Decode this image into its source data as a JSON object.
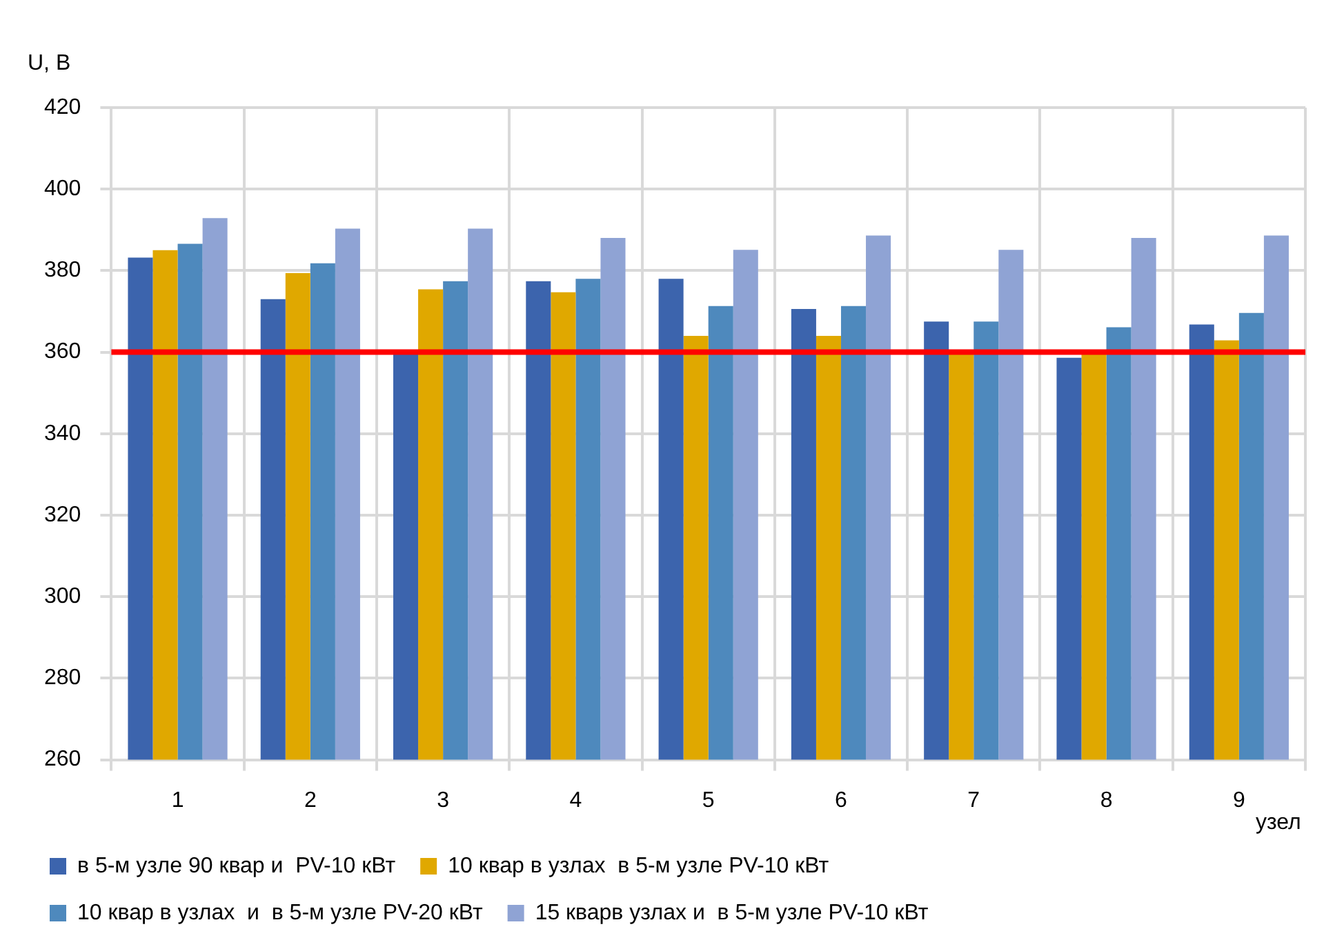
{
  "chart_data": {
    "type": "bar",
    "ylabel": "U, В",
    "xlabel": "узел",
    "categories": [
      "1",
      "2",
      "3",
      "4",
      "5",
      "6",
      "7",
      "8",
      "9"
    ],
    "series": [
      {
        "name": "в 5-м узле 90 квар и  PV-10 кВт",
        "color": "#3c64ad",
        "values": [
          383.2,
          373,
          360,
          377.4,
          378,
          370.6,
          367.5,
          358.6,
          366.8
        ]
      },
      {
        "name": "10 квар в узлах  в 5-м узле PV-10 кВт",
        "color": "#e0a800",
        "values": [
          385,
          379.4,
          375.4,
          374.7,
          364,
          364,
          360.4,
          359.5,
          362.9
        ]
      },
      {
        "name": "10 квар в узлах  и  в 5-м узле PV-20 кВт",
        "color": "#4e89bd",
        "values": [
          386.6,
          381.8,
          377.4,
          378,
          371.3,
          371.3,
          367.5,
          366.1,
          369.6
        ]
      },
      {
        "name": "15 кварв узлах и  в 5-м узле PV-10 кВт",
        "color": "#8fa3d4",
        "values": [
          392.9,
          390.3,
          390.3,
          388,
          385.1,
          388.6,
          385.1,
          388,
          388.6
        ]
      }
    ],
    "ylim": [
      260,
      420
    ],
    "yticks": [
      260,
      280,
      300,
      320,
      340,
      360,
      380,
      400,
      420
    ],
    "ref_lines": [
      {
        "axis": "y",
        "value": 360,
        "color": "#ff0000"
      }
    ],
    "grid": true,
    "legend": "bottom"
  }
}
